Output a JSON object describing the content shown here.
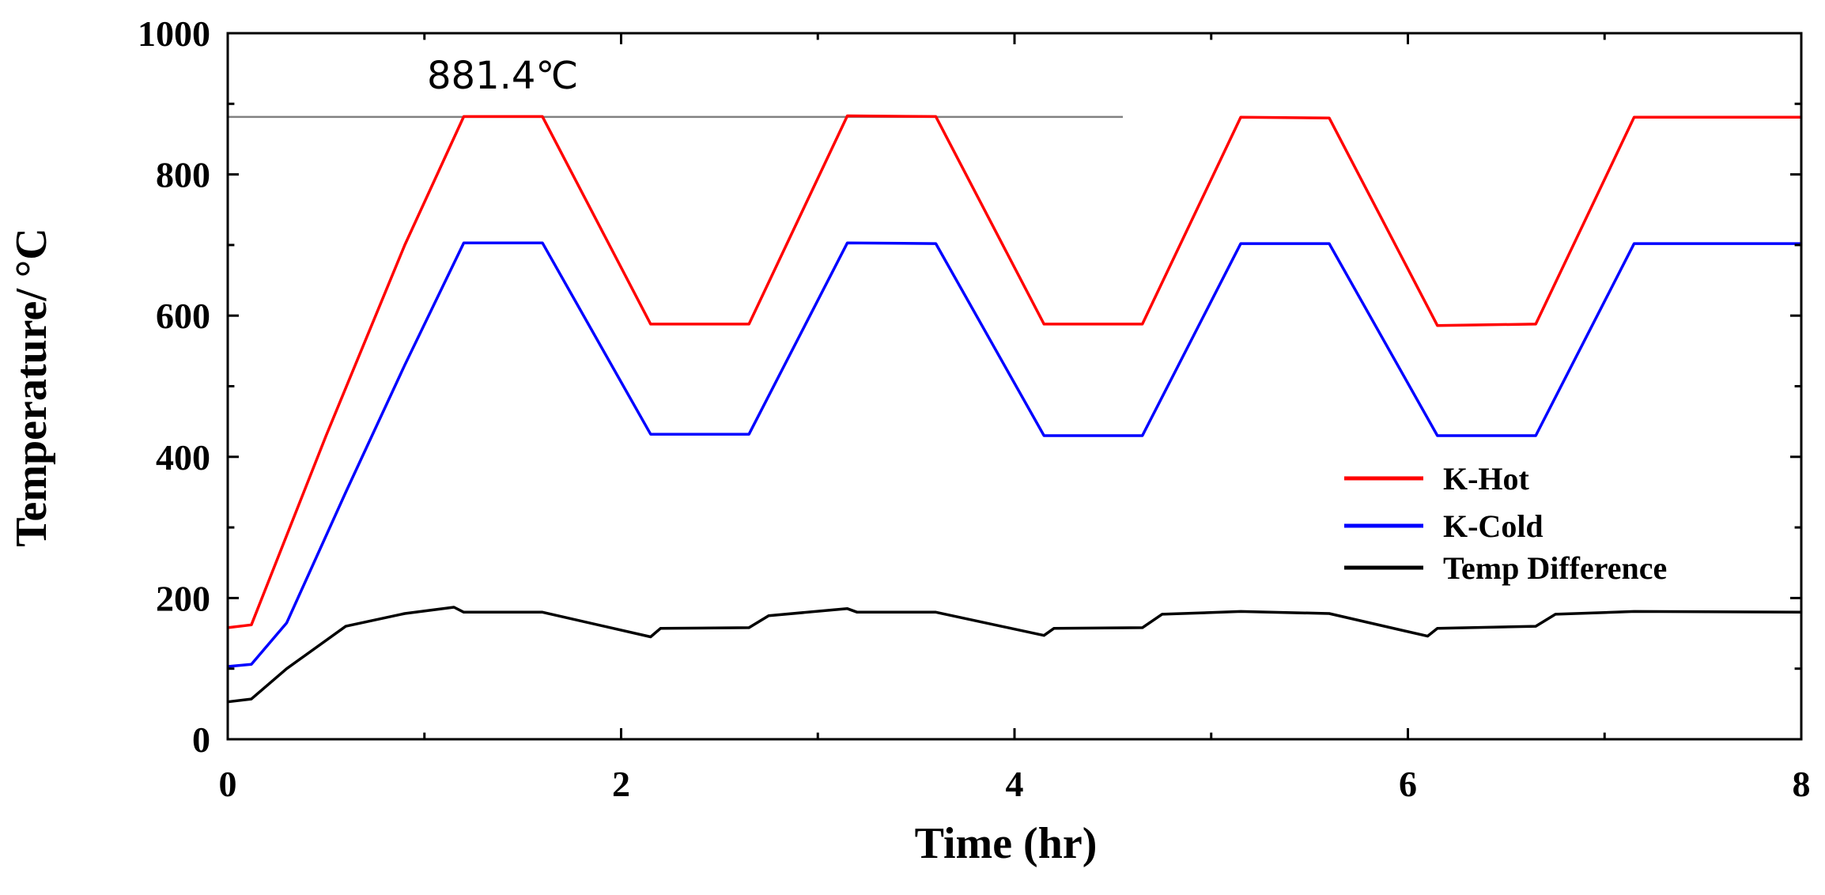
{
  "chart_data": {
    "type": "line",
    "title": "",
    "xlabel": "Time (hr)",
    "ylabel": "Temperature/ °C",
    "xlim": [
      0,
      8
    ],
    "ylim": [
      0,
      1000
    ],
    "x_ticks": [
      0,
      2,
      4,
      6,
      8
    ],
    "y_ticks": [
      0,
      200,
      400,
      600,
      800,
      1000
    ],
    "x_tick_labels": [
      "0",
      "2",
      "4",
      "6",
      "8"
    ],
    "y_tick_labels": [
      "0",
      "200",
      "400",
      "600",
      "800",
      "1000"
    ],
    "grid": false,
    "legend_position": "right",
    "annotation": {
      "text": "881.4℃",
      "value": 881.4
    },
    "series": [
      {
        "name": "K-Hot",
        "color": "#ff0000",
        "points": [
          [
            0,
            158
          ],
          [
            0.12,
            162
          ],
          [
            0.5,
            430
          ],
          [
            0.9,
            700
          ],
          [
            1.2,
            882
          ],
          [
            1.6,
            882
          ],
          [
            2.15,
            588
          ],
          [
            2.65,
            588
          ],
          [
            3.15,
            883
          ],
          [
            3.6,
            882
          ],
          [
            4.15,
            588
          ],
          [
            4.65,
            588
          ],
          [
            5.15,
            881
          ],
          [
            5.6,
            880
          ],
          [
            6.15,
            586
          ],
          [
            6.65,
            588
          ],
          [
            7.15,
            881
          ],
          [
            8.0,
            881
          ]
        ]
      },
      {
        "name": "K-Cold",
        "color": "#0000ff",
        "points": [
          [
            0,
            103
          ],
          [
            0.12,
            106
          ],
          [
            0.3,
            165
          ],
          [
            0.6,
            350
          ],
          [
            0.9,
            530
          ],
          [
            1.2,
            703
          ],
          [
            1.6,
            703
          ],
          [
            2.15,
            432
          ],
          [
            2.65,
            432
          ],
          [
            3.15,
            703
          ],
          [
            3.6,
            702
          ],
          [
            4.15,
            430
          ],
          [
            4.65,
            430
          ],
          [
            5.15,
            702
          ],
          [
            5.6,
            702
          ],
          [
            6.15,
            430
          ],
          [
            6.65,
            430
          ],
          [
            7.15,
            702
          ],
          [
            8.0,
            702
          ]
        ]
      },
      {
        "name": "Temp Difference",
        "color": "#000000",
        "points": [
          [
            0,
            53
          ],
          [
            0.12,
            57
          ],
          [
            0.3,
            100
          ],
          [
            0.6,
            160
          ],
          [
            0.9,
            178
          ],
          [
            1.15,
            187
          ],
          [
            1.2,
            180
          ],
          [
            1.6,
            180
          ],
          [
            2.15,
            145
          ],
          [
            2.2,
            157
          ],
          [
            2.65,
            158
          ],
          [
            2.75,
            175
          ],
          [
            3.15,
            185
          ],
          [
            3.2,
            180
          ],
          [
            3.6,
            180
          ],
          [
            4.15,
            147
          ],
          [
            4.2,
            157
          ],
          [
            4.65,
            158
          ],
          [
            4.75,
            177
          ],
          [
            5.15,
            181
          ],
          [
            5.6,
            178
          ],
          [
            6.1,
            146
          ],
          [
            6.15,
            157
          ],
          [
            6.65,
            160
          ],
          [
            6.75,
            177
          ],
          [
            7.15,
            181
          ],
          [
            8.0,
            180
          ]
        ]
      }
    ]
  }
}
